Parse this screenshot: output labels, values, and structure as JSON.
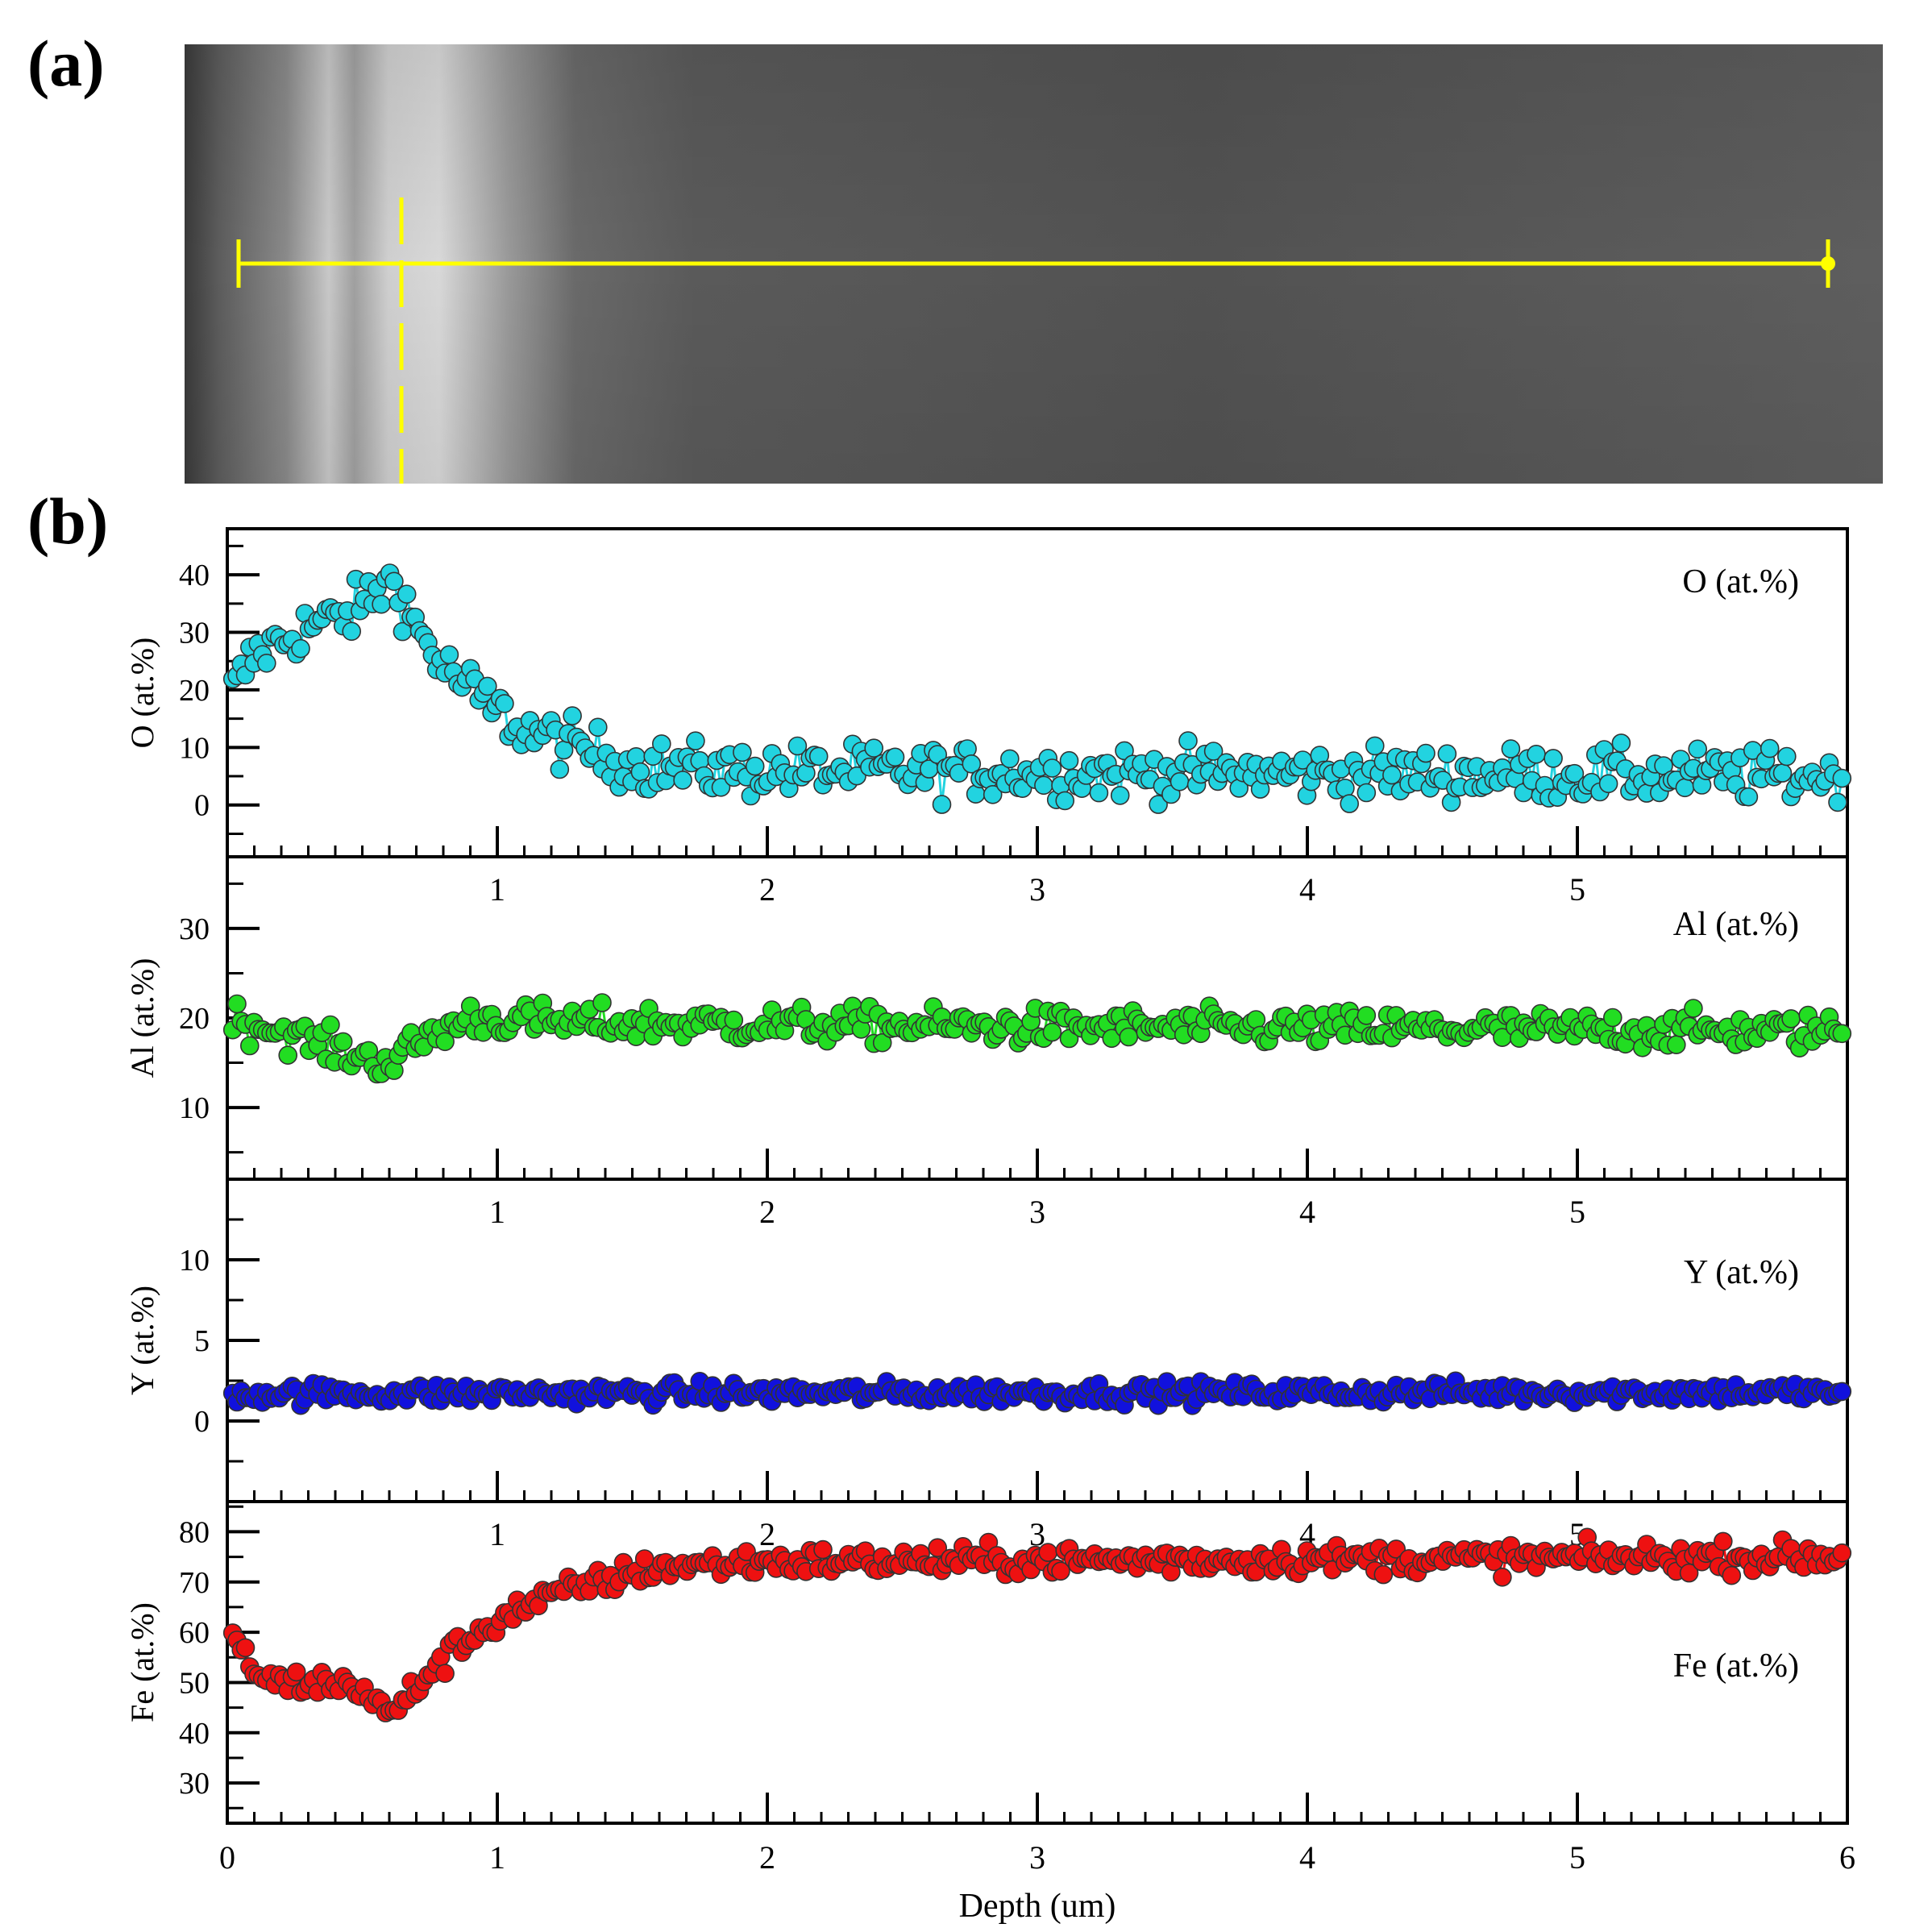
{
  "figure": {
    "label_a": "(a)",
    "label_b": "(b)"
  },
  "micrograph": {
    "line_color": "#ffff00",
    "background_color": "#585858",
    "band_color": "#d8d8d8"
  },
  "chart_data": {
    "type": "scatter",
    "x_label": "Depth (um)",
    "x_range": [
      0,
      6
    ],
    "x_ticks": [
      "0",
      "1",
      "2",
      "3",
      "4",
      "5",
      "6"
    ],
    "inner_x_ticks": [
      "1",
      "2",
      "3",
      "4",
      "5"
    ],
    "panels": [
      {
        "element": "O",
        "legend": "O (at.%)",
        "ylabel": "O (at.%)",
        "ylim": [
          -9,
          48
        ],
        "yticks": [
          "0",
          "10",
          "20",
          "30",
          "40"
        ],
        "color": "#22d3e0",
        "profile": [
          [
            0,
            18
          ],
          [
            0.1,
            26
          ],
          [
            0.3,
            31
          ],
          [
            0.45,
            33
          ],
          [
            0.55,
            37
          ],
          [
            0.62,
            39
          ],
          [
            0.7,
            31
          ],
          [
            0.8,
            24
          ],
          [
            0.95,
            18
          ],
          [
            1.1,
            13
          ],
          [
            1.3,
            10
          ],
          [
            1.5,
            7
          ],
          [
            1.8,
            6
          ],
          [
            6,
            5
          ]
        ],
        "noise": 3.2
      },
      {
        "element": "Al",
        "legend": "Al (at.%)",
        "ylabel": "Al (at.%)",
        "ylim": [
          2,
          38
        ],
        "yticks": [
          "10",
          "20",
          "30"
        ],
        "color": "#22dd22",
        "profile": [
          [
            0,
            20
          ],
          [
            0.2,
            18.5
          ],
          [
            0.45,
            16
          ],
          [
            0.6,
            15
          ],
          [
            0.75,
            18
          ],
          [
            0.9,
            20
          ],
          [
            1.2,
            19.5
          ],
          [
            3,
            19
          ],
          [
            6,
            18.5
          ]
        ],
        "noise": 1.4
      },
      {
        "element": "Y",
        "legend": "Y (at.%)",
        "ylabel": "Y (at.%)",
        "ylim": [
          -5,
          15
        ],
        "yticks": [
          "0",
          "5",
          "10"
        ],
        "color": "#1111dd",
        "profile": [
          [
            0,
            1.7
          ],
          [
            6,
            1.8
          ]
        ],
        "noise": 0.45
      },
      {
        "element": "Fe",
        "legend": "Fe (at.%)",
        "ylabel": "Fe (at.%)",
        "ylim": [
          22,
          86
        ],
        "yticks": [
          "30",
          "40",
          "50",
          "60",
          "70",
          "80"
        ],
        "color": "#ee1111",
        "profile": [
          [
            0,
            59
          ],
          [
            0.15,
            50
          ],
          [
            0.35,
            50
          ],
          [
            0.5,
            49
          ],
          [
            0.6,
            43
          ],
          [
            0.75,
            52
          ],
          [
            0.9,
            59
          ],
          [
            1.05,
            64
          ],
          [
            1.3,
            69
          ],
          [
            1.6,
            73
          ],
          [
            2,
            74
          ],
          [
            6,
            75
          ]
        ],
        "noise": 2.0
      }
    ]
  }
}
